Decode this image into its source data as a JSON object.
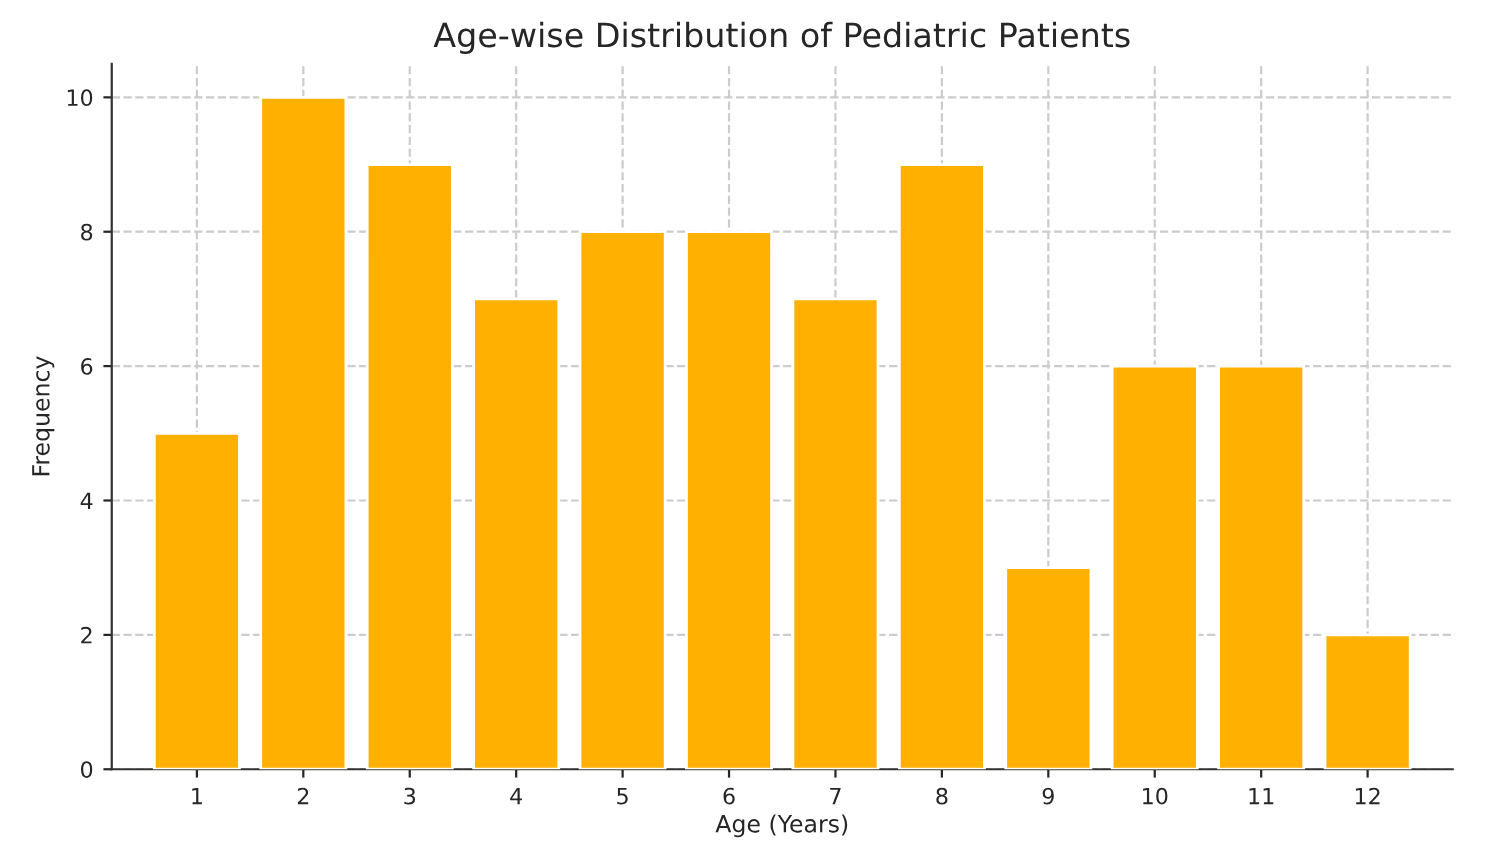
{
  "chart_data": {
    "type": "bar",
    "title": "Age-wise Distribution of Pediatric Patients",
    "xlabel": "Age (Years)",
    "ylabel": "Frequency",
    "categories": [
      "1",
      "2",
      "3",
      "4",
      "5",
      "6",
      "7",
      "8",
      "9",
      "10",
      "11",
      "12"
    ],
    "values": [
      5,
      10,
      9,
      7,
      8,
      8,
      7,
      9,
      3,
      6,
      6,
      2
    ],
    "color": "#ffb000",
    "ylim": [
      0,
      10.5
    ],
    "yticks": [
      0,
      2,
      4,
      6,
      8,
      10
    ],
    "grid": true
  }
}
